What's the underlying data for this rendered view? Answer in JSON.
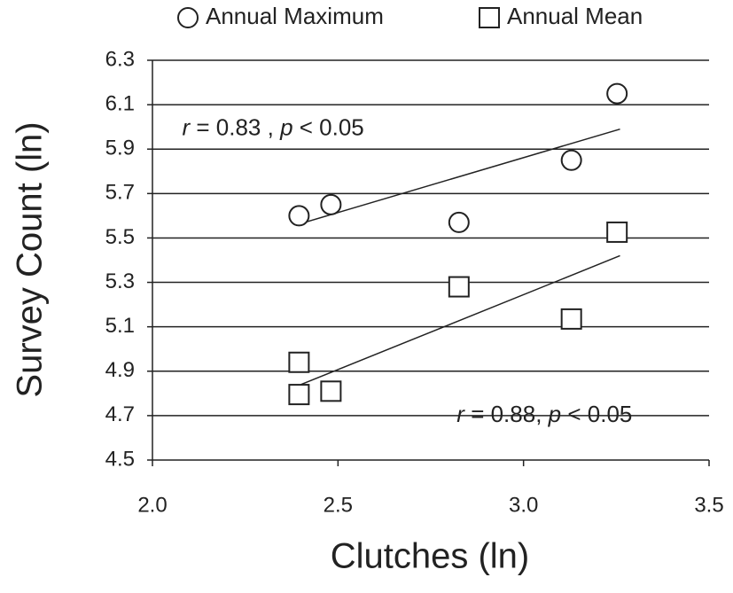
{
  "chart_data": {
    "type": "scatter",
    "xlabel": "Clutches (ln)",
    "ylabel": "Survey Count (ln)",
    "xlim": [
      2.0,
      3.5
    ],
    "xticks": [
      {
        "value": 2,
        "label": "2.0"
      },
      2.5,
      {
        "value": 3,
        "label": "3.0"
      },
      3.5
    ],
    "ylim": [
      4.5,
      6.3
    ],
    "yticks": [
      4.5,
      4.7,
      4.9,
      5.1,
      5.3,
      5.5,
      5.7,
      5.9,
      6.1,
      6.3
    ],
    "grid": true,
    "legend": "top",
    "series": [
      {
        "name": "Annual Maximum",
        "marker": "circle",
        "color": "#222222",
        "x": [
          2.395,
          2.481,
          2.826,
          3.129,
          3.252
        ],
        "values": [
          5.6,
          5.65,
          5.57,
          5.85,
          6.15
        ],
        "trendline": {
          "x": [
            2.4,
            3.26
          ],
          "y": [
            5.565,
            5.99
          ]
        }
      },
      {
        "name": "Annual Mean",
        "marker": "square",
        "color": "#222222",
        "x": [
          2.395,
          2.395,
          2.481,
          2.826,
          3.129,
          3.252
        ],
        "values": [
          4.94,
          4.795,
          4.81,
          5.28,
          5.135,
          5.526
        ],
        "trendline": {
          "x": [
            2.4,
            3.26
          ],
          "y": [
            4.84,
            5.42
          ]
        }
      }
    ],
    "annotations": [
      {
        "parts": [
          "r",
          " = 0.83 , ",
          "p",
          " < 0.05"
        ],
        "x": 2.08,
        "y": 5.99
      },
      {
        "parts": [
          "r",
          " = 0.88, ",
          "p",
          " < 0.05"
        ],
        "x": 2.82,
        "y": 4.7
      }
    ]
  }
}
